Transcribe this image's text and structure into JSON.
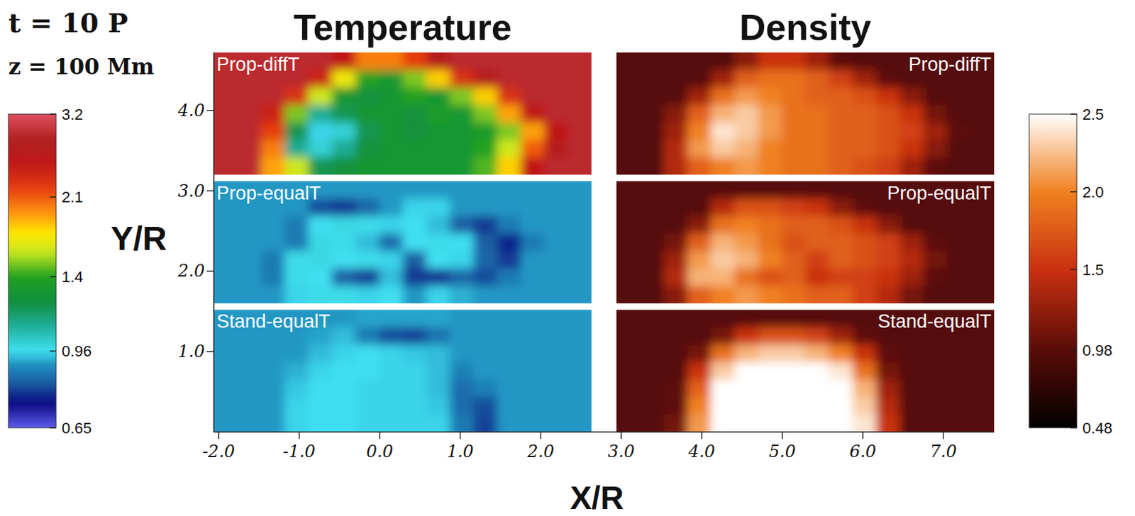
{
  "chart_data": {
    "type": "heatmap",
    "title": "t = 10 P",
    "subtitle": "z = 100 Mm",
    "column_titles": [
      "Temperature",
      "Density"
    ],
    "x_label": "X/R",
    "y_label": "Y/R",
    "xlim": [
      -2.06,
      7.63
    ],
    "xticks": [
      {
        "value": -2,
        "label": "-2.0"
      },
      {
        "value": -1,
        "label": "-1.0"
      },
      {
        "value": 0,
        "label": "0.0"
      },
      {
        "value": 1,
        "label": "1.0"
      },
      {
        "value": 2,
        "label": "2.0"
      },
      {
        "value": 3,
        "label": "3.0"
      },
      {
        "value": 4,
        "label": "4.0"
      },
      {
        "value": 5,
        "label": "5.0"
      },
      {
        "value": 6,
        "label": "6.0"
      },
      {
        "value": 7,
        "label": "7.0"
      }
    ],
    "ylim": [
      0,
      4.72
    ],
    "yticks": [
      {
        "value": 1,
        "label": "1.0"
      },
      {
        "value": 2,
        "label": "2.0"
      },
      {
        "value": 3,
        "label": "3.0"
      },
      {
        "value": 4,
        "label": "4.0"
      }
    ],
    "colorbars": [
      {
        "range": [
          0.65,
          3.2
        ],
        "ticks": [
          3.2,
          2.1,
          1.4,
          0.96,
          0.65
        ],
        "log": true
      },
      {
        "range": [
          0.48,
          2.5
        ],
        "ticks": [
          2.5,
          {
            "value": 2,
            "label": "2.0"
          },
          1.5,
          0.98,
          0.48
        ]
      }
    ],
    "panels": [
      {
        "label": "Prop-diffT",
        "colorbar": 0,
        "xlim": [
          -2.06,
          2.63
        ],
        "ylim": [
          3.2,
          4.72
        ],
        "cells": [
          [
            2.9,
            2.9,
            2.9,
            2.9,
            2.9,
            2.5,
            2.0,
            2.0,
            2.2,
            2.7,
            2.9,
            2.9,
            2.9,
            2.9,
            2.9,
            2.9
          ],
          [
            2.9,
            2.9,
            2.9,
            2.9,
            2.4,
            1.7,
            1.4,
            1.3,
            1.5,
            1.8,
            2.3,
            2.7,
            2.9,
            2.9,
            2.9,
            2.9
          ],
          [
            2.9,
            2.9,
            2.9,
            2.3,
            1.6,
            1.3,
            1.25,
            1.3,
            1.4,
            1.3,
            1.5,
            1.8,
            2.3,
            2.9,
            2.9,
            2.9
          ],
          [
            2.9,
            2.9,
            2.4,
            1.5,
            1.1,
            1.2,
            1.3,
            1.3,
            1.25,
            1.35,
            1.3,
            1.5,
            1.9,
            2.5,
            2.9,
            2.9
          ],
          [
            2.9,
            2.9,
            2.2,
            1.2,
            0.95,
            1.0,
            1.2,
            1.3,
            1.25,
            1.3,
            1.3,
            1.35,
            1.5,
            1.9,
            2.5,
            2.9
          ],
          [
            2.9,
            2.9,
            2.0,
            1.1,
            1.0,
            1.1,
            1.25,
            1.3,
            1.3,
            1.3,
            1.3,
            1.4,
            1.6,
            2.1,
            2.7,
            2.9
          ],
          [
            2.9,
            2.9,
            1.9,
            1.6,
            1.2,
            1.25,
            1.3,
            1.3,
            1.3,
            1.3,
            1.3,
            1.45,
            1.8,
            2.5,
            2.9,
            2.9
          ]
        ]
      },
      {
        "label": "Prop-equalT",
        "colorbar": 0,
        "xlim": [
          -2.06,
          2.63
        ],
        "ylim": [
          1.6,
          3.12
        ],
        "cells": [
          [
            0.9,
            0.9,
            0.9,
            0.9,
            0.9,
            0.9,
            0.9,
            0.9,
            0.9,
            0.9,
            0.9,
            0.9,
            0.9,
            0.9,
            0.9,
            0.9
          ],
          [
            0.9,
            0.9,
            0.9,
            0.9,
            0.8,
            0.78,
            0.83,
            0.9,
            0.95,
            0.95,
            0.9,
            0.9,
            0.9,
            0.9,
            0.9,
            0.9
          ],
          [
            0.9,
            0.9,
            0.9,
            0.86,
            0.96,
            0.98,
            0.97,
            0.95,
            0.96,
            0.93,
            0.82,
            0.78,
            0.86,
            0.9,
            0.9,
            0.9
          ],
          [
            0.9,
            0.9,
            0.9,
            0.86,
            0.98,
            0.97,
            0.93,
            0.84,
            0.96,
            0.97,
            0.96,
            0.82,
            0.76,
            0.86,
            0.9,
            0.9
          ],
          [
            0.9,
            0.9,
            0.86,
            0.97,
            0.98,
            0.96,
            0.97,
            0.95,
            0.82,
            0.96,
            0.95,
            0.83,
            0.78,
            0.9,
            0.9,
            0.9
          ],
          [
            0.9,
            0.9,
            0.86,
            0.97,
            0.96,
            0.82,
            0.79,
            0.93,
            0.78,
            0.78,
            0.83,
            0.8,
            0.86,
            0.9,
            0.9,
            0.9
          ],
          [
            0.9,
            0.9,
            0.9,
            0.95,
            0.97,
            0.97,
            0.95,
            0.96,
            0.9,
            0.95,
            0.92,
            0.9,
            0.9,
            0.9,
            0.9,
            0.9
          ]
        ]
      },
      {
        "label": "Stand-equalT",
        "colorbar": 0,
        "xlim": [
          -2.06,
          2.63
        ],
        "ylim": [
          0,
          1.52
        ],
        "cells": [
          [
            0.9,
            0.9,
            0.9,
            0.9,
            0.9,
            0.9,
            0.91,
            0.91,
            0.91,
            0.91,
            0.9,
            0.9,
            0.9,
            0.9,
            0.9,
            0.9
          ],
          [
            0.9,
            0.9,
            0.9,
            0.9,
            0.91,
            0.93,
            0.86,
            0.8,
            0.79,
            0.85,
            0.9,
            0.9,
            0.9,
            0.9,
            0.9,
            0.9
          ],
          [
            0.9,
            0.9,
            0.9,
            0.9,
            0.93,
            0.95,
            0.96,
            0.95,
            0.94,
            0.93,
            0.9,
            0.9,
            0.9,
            0.9,
            0.9,
            0.9
          ],
          [
            0.9,
            0.9,
            0.9,
            0.92,
            0.95,
            0.96,
            0.96,
            0.95,
            0.95,
            0.93,
            0.87,
            0.9,
            0.9,
            0.9,
            0.9,
            0.9
          ],
          [
            0.9,
            0.9,
            0.9,
            0.94,
            0.96,
            0.96,
            0.95,
            0.95,
            0.95,
            0.93,
            0.84,
            0.87,
            0.9,
            0.9,
            0.9,
            0.9
          ],
          [
            0.9,
            0.9,
            0.9,
            0.95,
            0.96,
            0.96,
            0.95,
            0.95,
            0.95,
            0.94,
            0.84,
            0.8,
            0.9,
            0.9,
            0.9,
            0.9
          ],
          [
            0.9,
            0.9,
            0.9,
            0.95,
            0.96,
            0.96,
            0.95,
            0.95,
            0.95,
            0.95,
            0.86,
            0.79,
            0.9,
            0.9,
            0.9,
            0.9
          ]
        ]
      },
      {
        "label": "Prop-diffT",
        "colorbar": 1,
        "xlim": [
          2.94,
          7.63
        ],
        "ylim": [
          3.2,
          4.72
        ],
        "cells": [
          [
            0.95,
            0.95,
            0.95,
            0.95,
            0.95,
            1.2,
            1.5,
            1.5,
            1.3,
            1.0,
            0.95,
            0.95,
            0.95,
            0.95,
            0.95,
            0.95
          ],
          [
            0.95,
            0.95,
            0.95,
            0.95,
            1.3,
            1.8,
            1.9,
            1.9,
            1.8,
            1.6,
            1.3,
            1.0,
            0.95,
            0.95,
            0.95,
            0.95
          ],
          [
            0.95,
            0.95,
            0.95,
            1.3,
            1.9,
            2.1,
            2.0,
            1.9,
            1.8,
            1.8,
            1.7,
            1.5,
            1.2,
            0.95,
            0.95,
            0.95
          ],
          [
            0.95,
            0.95,
            1.2,
            1.8,
            2.2,
            2.3,
            2.1,
            1.9,
            1.9,
            1.8,
            1.8,
            1.7,
            1.5,
            1.1,
            0.95,
            0.95
          ],
          [
            0.95,
            0.95,
            1.3,
            2.0,
            2.4,
            2.3,
            2.1,
            1.9,
            1.9,
            1.8,
            1.8,
            1.7,
            1.6,
            1.3,
            1.0,
            0.95
          ],
          [
            0.95,
            0.95,
            1.4,
            2.1,
            2.3,
            2.2,
            2.0,
            1.9,
            1.9,
            1.8,
            1.8,
            1.7,
            1.5,
            1.2,
            0.95,
            0.95
          ],
          [
            0.95,
            0.95,
            1.4,
            1.8,
            2.0,
            2.1,
            2.0,
            1.9,
            1.9,
            1.8,
            1.7,
            1.6,
            1.3,
            1.0,
            0.95,
            0.95
          ]
        ]
      },
      {
        "label": "Prop-equalT",
        "colorbar": 1,
        "xlim": [
          2.94,
          7.63
        ],
        "ylim": [
          1.6,
          3.12
        ],
        "cells": [
          [
            0.95,
            0.95,
            0.95,
            0.95,
            0.95,
            0.95,
            0.95,
            0.95,
            0.95,
            0.95,
            0.95,
            0.95,
            0.95,
            0.95,
            0.95,
            0.95
          ],
          [
            0.95,
            0.95,
            0.95,
            0.95,
            1.4,
            1.7,
            1.7,
            1.6,
            1.5,
            1.2,
            1.0,
            0.95,
            0.95,
            0.95,
            0.95,
            0.95
          ],
          [
            0.95,
            0.95,
            0.95,
            1.2,
            1.9,
            2.0,
            1.9,
            1.8,
            1.8,
            1.7,
            1.5,
            1.2,
            0.95,
            0.95,
            0.95,
            0.95
          ],
          [
            0.95,
            0.95,
            1.1,
            1.8,
            2.2,
            2.1,
            1.9,
            1.7,
            1.8,
            1.8,
            1.7,
            1.6,
            1.3,
            1.0,
            0.95,
            0.95
          ],
          [
            0.95,
            0.95,
            1.3,
            2.1,
            2.3,
            2.2,
            2.0,
            1.8,
            1.6,
            1.8,
            1.7,
            1.6,
            1.4,
            1.1,
            0.95,
            0.95
          ],
          [
            0.95,
            0.95,
            1.4,
            2.2,
            2.2,
            1.9,
            1.7,
            1.8,
            1.5,
            1.6,
            1.6,
            1.5,
            1.3,
            1.0,
            0.95,
            0.95
          ],
          [
            0.95,
            0.95,
            1.2,
            1.8,
            2.0,
            2.1,
            2.0,
            1.9,
            1.8,
            1.8,
            1.6,
            1.4,
            1.1,
            0.95,
            0.95,
            0.95
          ]
        ]
      },
      {
        "label": "Stand-equalT",
        "colorbar": 1,
        "xlim": [
          2.94,
          7.63
        ],
        "ylim": [
          0,
          1.52
        ],
        "cells": [
          [
            0.95,
            0.95,
            0.95,
            0.95,
            0.95,
            0.95,
            0.95,
            0.95,
            0.95,
            0.95,
            0.95,
            0.95,
            0.95,
            0.95,
            0.95,
            0.95
          ],
          [
            0.95,
            0.95,
            0.95,
            0.95,
            1.1,
            1.5,
            1.7,
            1.7,
            1.6,
            1.3,
            1.0,
            0.95,
            0.95,
            0.95,
            0.95,
            0.95
          ],
          [
            0.95,
            0.95,
            0.95,
            1.1,
            1.9,
            2.2,
            2.3,
            2.3,
            2.2,
            2.0,
            1.5,
            1.0,
            0.95,
            0.95,
            0.95,
            0.95
          ],
          [
            0.95,
            0.95,
            0.95,
            1.5,
            2.3,
            2.5,
            2.5,
            2.5,
            2.5,
            2.4,
            1.9,
            1.1,
            0.95,
            0.95,
            0.95,
            0.95
          ],
          [
            0.95,
            0.95,
            1.0,
            1.8,
            2.5,
            2.5,
            2.5,
            2.5,
            2.5,
            2.5,
            2.2,
            1.3,
            0.95,
            0.95,
            0.95,
            0.95
          ],
          [
            0.95,
            0.95,
            1.0,
            2.0,
            2.5,
            2.5,
            2.5,
            2.5,
            2.5,
            2.5,
            2.3,
            1.4,
            0.95,
            0.95,
            0.95,
            0.95
          ],
          [
            0.95,
            0.95,
            1.1,
            2.1,
            2.5,
            2.5,
            2.5,
            2.5,
            2.5,
            2.5,
            2.4,
            1.5,
            0.95,
            0.95,
            0.95,
            0.95
          ]
        ]
      }
    ]
  }
}
